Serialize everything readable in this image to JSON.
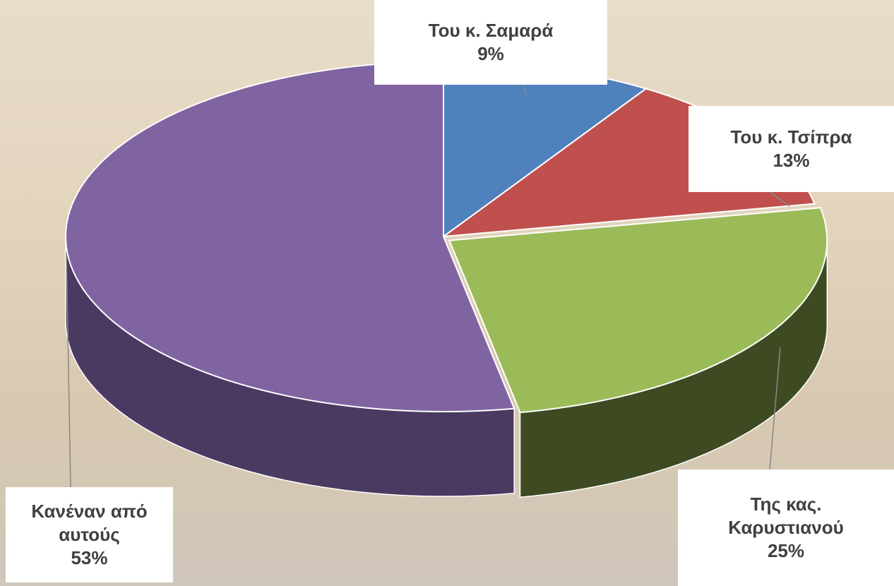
{
  "chart_data": {
    "type": "pie",
    "categories": [
      "Του κ. Σαμαρά",
      "Του κ. Τσίπρα",
      "Της κας. Καρυστιανού",
      "Κανέναν από αυτούς"
    ],
    "values": [
      9,
      13,
      25,
      53
    ],
    "value_labels": [
      "9%",
      "13%",
      "25%",
      "53%"
    ],
    "colors": [
      "#4f81bd",
      "#c0504d",
      "#9bbb59",
      "#8064a2"
    ],
    "side_colors": [
      "#2f4d72",
      "#74302e",
      "#3e4b22",
      "#4a3a62"
    ]
  }
}
